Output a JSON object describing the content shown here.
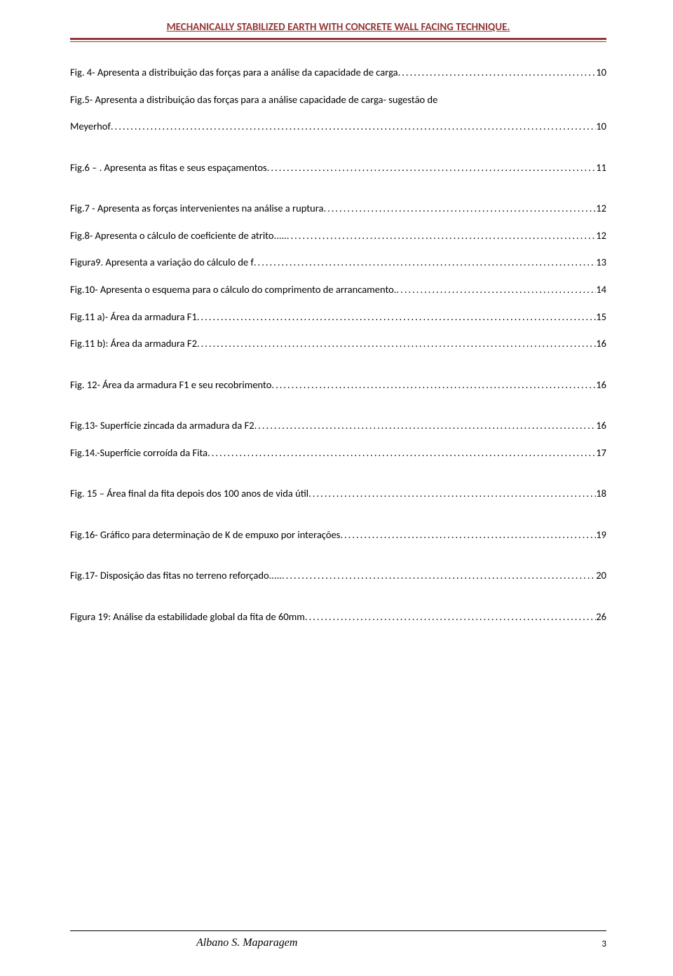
{
  "header": {
    "title": "MECHANICALLY STABILIZED EARTH WITH CONCRETE WALL FACING TECHNIQUE.",
    "accent_color": "#943634"
  },
  "toc": [
    {
      "text": "Fig. 4- Apresenta a distribuição das forças para a análise da capacidade de carga",
      "page": "10",
      "gap": "normal"
    },
    {
      "text": "Fig.5- Apresenta a distribuição das forças para a análise  capacidade de carga- sugestão de",
      "text2": "Meyerhof",
      "page": "10",
      "gap": "extra",
      "multiline": true
    },
    {
      "text": "Fig.6 – . Apresenta as fitas e seus espaçamentos",
      "page": "11",
      "gap": "extra"
    },
    {
      "text": "Fig.7 - Apresenta as forças intervenientes na análise a ruptura",
      "page": "12",
      "gap": "normal"
    },
    {
      "text": "Fig.8- Apresenta o cálculo de coeficiente de atrito.....   ",
      "page": "12",
      "gap": "normal"
    },
    {
      "text": "Figura9. Apresenta a variação do cálculo de f",
      "page": "13",
      "gap": "normal"
    },
    {
      "text": "Fig.10- Apresenta o esquema para o cálculo  do comprimento de arrancamento.",
      "page": "14",
      "gap": "normal"
    },
    {
      "text": "Fig.11 a)- Área da armadura F1",
      "page": "15",
      "gap": "normal"
    },
    {
      "text": "Fig.11 b): Área da armadura F2",
      "page": "16",
      "gap": "extra"
    },
    {
      "text": "Fig. 12- Área da armadura F1 e seu recobrimento",
      "page": "16",
      "gap": "extra"
    },
    {
      "text": "Fig.13- Superfície zincada da armadura da F2",
      "page": "16",
      "gap": "normal"
    },
    {
      "text": "Fig.14.-Superfície corroída da Fita",
      "page": "17",
      "gap": "extra"
    },
    {
      "text": "Fig. 15 – Área final da fita depois dos 100 anos de vida útil",
      "page": "18",
      "gap": "extra"
    },
    {
      "text": "Fig.16- Gráfico para determinação de K de empuxo por interações",
      "page": "19",
      "gap": "extra"
    },
    {
      "text": "Fig.17- Disposição das fitas no terreno reforçado.....  ",
      "page": "20",
      "gap": "extra"
    },
    {
      "text": "Figura 19: Análise da estabilidade global da fita de 60mm",
      "page": "26",
      "gap": "normal"
    }
  ],
  "footer": {
    "author": "Albano S. Maparagem",
    "page_number": "3"
  },
  "style": {
    "body_font_size": 14.5,
    "text_color": "#000000",
    "background_color": "#ffffff"
  }
}
